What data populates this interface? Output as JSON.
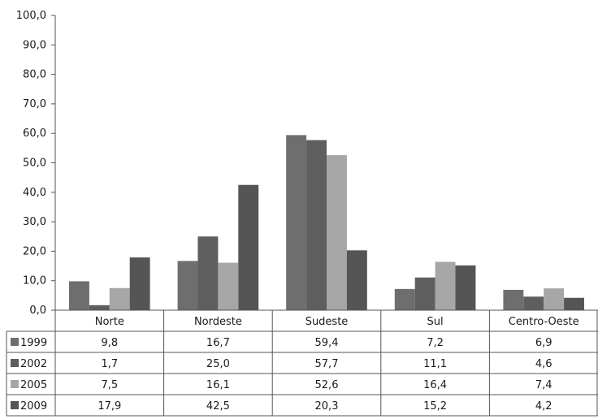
{
  "chart_data": {
    "type": "bar",
    "categories": [
      "Norte",
      "Nordeste",
      "Sudeste",
      "Sul",
      "Centro-Oeste"
    ],
    "series": [
      {
        "name": "1999",
        "values": [
          9.8,
          16.7,
          59.4,
          7.2,
          6.9
        ],
        "labels": [
          "9,8",
          "16,7",
          "59,4",
          "7,2",
          "6,9"
        ],
        "color": "#6e6e6e"
      },
      {
        "name": "2002",
        "values": [
          1.7,
          25.0,
          57.7,
          11.1,
          4.6
        ],
        "labels": [
          "1,7",
          "25,0",
          "57,7",
          "11,1",
          "4,6"
        ],
        "color": "#5e5e5e"
      },
      {
        "name": "2005",
        "values": [
          7.5,
          16.1,
          52.6,
          16.4,
          7.4
        ],
        "labels": [
          "7,5",
          "16,1",
          "52,6",
          "16,4",
          "7,4"
        ],
        "color": "#a6a6a6"
      },
      {
        "name": "2009",
        "values": [
          17.9,
          42.5,
          20.3,
          15.2,
          4.2
        ],
        "labels": [
          "17,9",
          "42,5",
          "20,3",
          "15,2",
          "4,2"
        ],
        "color": "#555555"
      }
    ],
    "y_ticks": [
      0,
      10,
      20,
      30,
      40,
      50,
      60,
      70,
      80,
      90,
      100
    ],
    "y_tick_labels": [
      "0,0",
      "10,0",
      "20,0",
      "30,0",
      "40,0",
      "50,0",
      "60,0",
      "70,0",
      "80,0",
      "90,0",
      "100,0"
    ],
    "ylim": [
      0,
      100
    ],
    "grid": false,
    "legend": "data-table-below"
  }
}
